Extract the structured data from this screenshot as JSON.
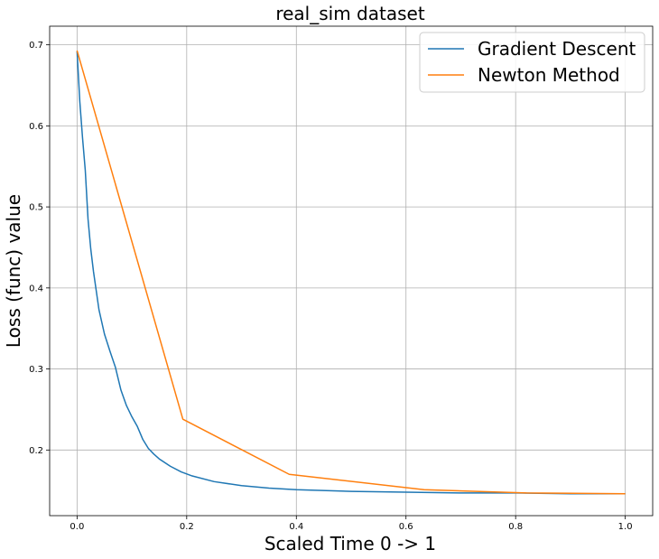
{
  "chart_data": {
    "type": "line",
    "title": "real_sim dataset",
    "xlabel": "Scaled Time 0 -> 1",
    "ylabel": "Loss (func) value",
    "xlim": [
      -0.05,
      1.05
    ],
    "ylim": [
      0.119,
      0.723
    ],
    "xticks": [
      0.0,
      0.2,
      0.4,
      0.6,
      0.8,
      1.0
    ],
    "xtick_labels": [
      "0.0",
      "0.2",
      "0.4",
      "0.6",
      "0.8",
      "1.0"
    ],
    "yticks": [
      0.2,
      0.3,
      0.4,
      0.5,
      0.6,
      0.7
    ],
    "ytick_labels": [
      "0.2",
      "0.3",
      "0.4",
      "0.5",
      "0.6",
      "0.7"
    ],
    "grid": true,
    "legend_position": "top-right",
    "series": [
      {
        "name": "Gradient Descent",
        "color": "#1f77b4",
        "x": [
          0.0,
          0.005,
          0.01,
          0.015,
          0.02,
          0.025,
          0.03,
          0.04,
          0.05,
          0.06,
          0.07,
          0.08,
          0.09,
          0.1,
          0.11,
          0.12,
          0.13,
          0.14,
          0.15,
          0.17,
          0.19,
          0.21,
          0.25,
          0.3,
          0.35,
          0.4,
          0.5,
          0.6,
          0.7,
          0.8,
          0.9,
          1.0
        ],
        "y": [
          0.692,
          0.63,
          0.585,
          0.545,
          0.485,
          0.448,
          0.42,
          0.373,
          0.343,
          0.322,
          0.302,
          0.274,
          0.255,
          0.241,
          0.229,
          0.213,
          0.202,
          0.195,
          0.189,
          0.18,
          0.173,
          0.168,
          0.161,
          0.156,
          0.153,
          0.151,
          0.149,
          0.148,
          0.147,
          0.147,
          0.146,
          0.146
        ]
      },
      {
        "name": "Newton Method",
        "color": "#ff7f0e",
        "x": [
          0.0,
          0.193,
          0.387,
          0.633,
          0.82,
          1.0
        ],
        "y": [
          0.693,
          0.238,
          0.17,
          0.151,
          0.147,
          0.146
        ]
      }
    ]
  }
}
